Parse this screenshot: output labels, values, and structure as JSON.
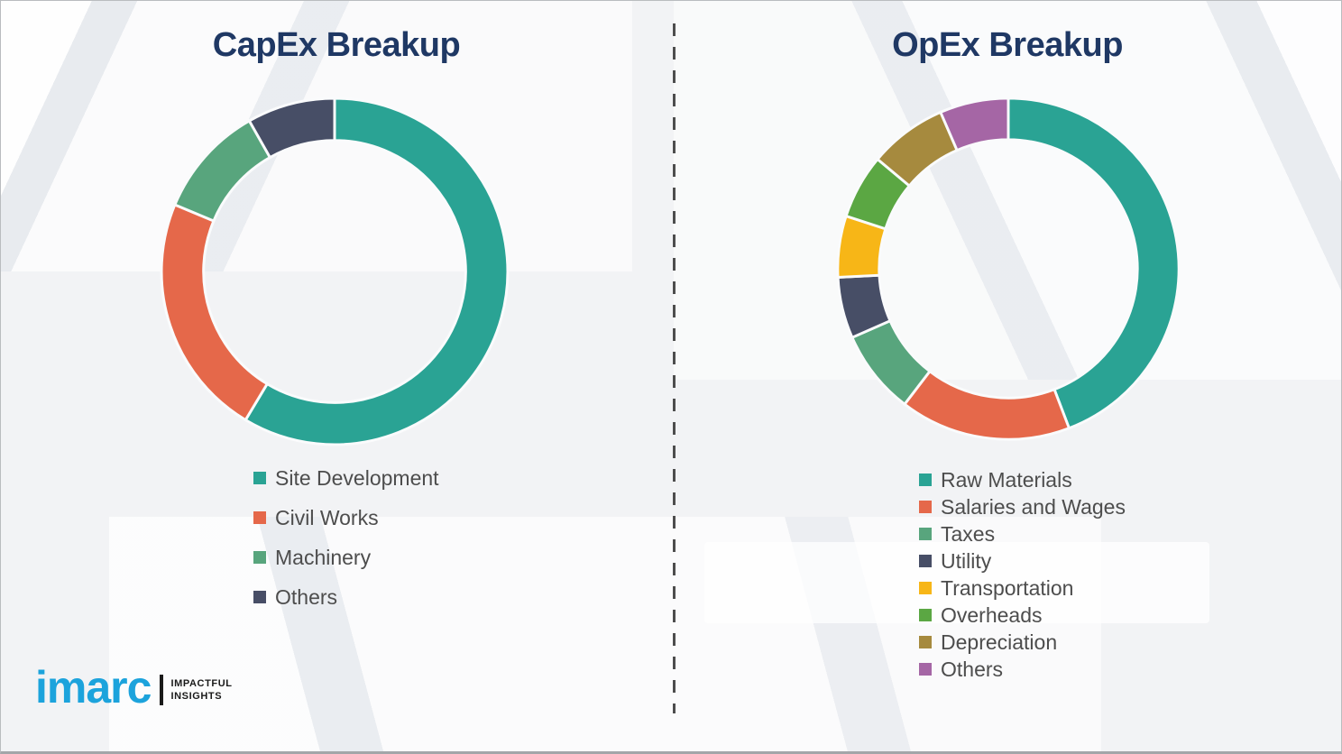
{
  "chart_data": [
    {
      "type": "pie",
      "variant": "donut",
      "title": "CapEx Breakup",
      "labels": [
        "Site Development",
        "Civil Works",
        "Machinery",
        "Others"
      ],
      "values": [
        58.6,
        22.7,
        10.5,
        8.2
      ],
      "colors": [
        "#2AA394",
        "#E5684A",
        "#58A57D",
        "#474E66"
      ],
      "units": "percent",
      "start_angle_deg": 0,
      "direction": "clockwise",
      "inner_radius_ratio": 0.757,
      "legend_position": "below-left",
      "data_labels_shown": false
    },
    {
      "type": "pie",
      "variant": "donut",
      "title": "OpEx Breakup",
      "labels": [
        "Raw Materials",
        "Salaries and Wages",
        "Taxes",
        "Utility",
        "Transportation",
        "Overheads",
        "Depreciation",
        "Others"
      ],
      "values": [
        44.2,
        16.2,
        8.0,
        5.8,
        5.8,
        6.1,
        7.4,
        6.5
      ],
      "colors": [
        "#2AA394",
        "#E5684A",
        "#58A57D",
        "#474E66",
        "#F7B617",
        "#5BA743",
        "#A68A3E",
        "#A566A5"
      ],
      "units": "percent",
      "start_angle_deg": 0,
      "direction": "clockwise",
      "inner_radius_ratio": 0.757,
      "legend_position": "below-left",
      "data_labels_shown": false
    }
  ],
  "logo": {
    "brand": "imarc",
    "tagline_line1": "IMPACTFUL",
    "tagline_line2": "INSIGHTS"
  },
  "styles": {
    "title_color": "#1F3864",
    "legend_text_color": "#4D4D4D",
    "background_color": "#F2F3F5",
    "brand_blue": "#1CA3DC",
    "divider_color": "#4D4D4D",
    "segment_gap_color": "#FAFBFC"
  }
}
